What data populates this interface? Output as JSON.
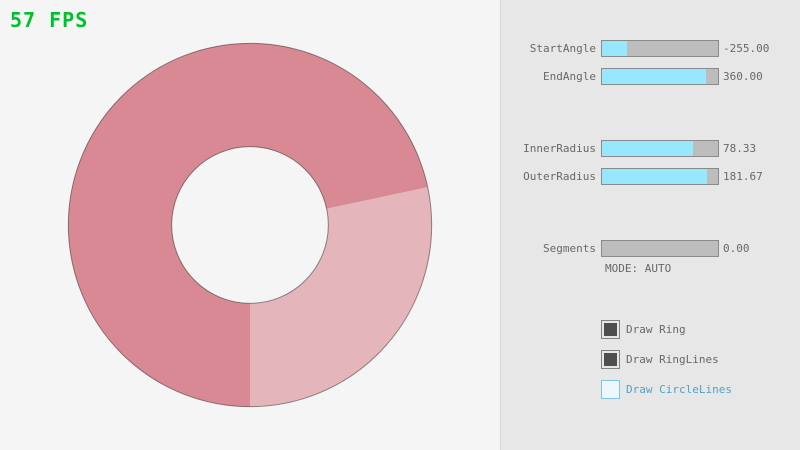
{
  "fps": {
    "text": "57 FPS",
    "color": "#00C12B"
  },
  "ring": {
    "color_dark": "#D98994",
    "color_light": "#E5B5BC",
    "outline_color": "rgba(0,0,0,0.42)"
  },
  "panel": {
    "sliders": [
      {
        "label": "StartAngle",
        "value": "-255.00",
        "fill_pct": 21.7
      },
      {
        "label": "EndAngle",
        "value": "360.00",
        "fill_pct": 90.0
      },
      {
        "label": "InnerRadius",
        "value": "78.33",
        "fill_pct": 78.3
      },
      {
        "label": "OuterRadius",
        "value": "181.67",
        "fill_pct": 90.8
      },
      {
        "label": "Segments",
        "value": "0.00",
        "fill_pct": 0
      }
    ],
    "mode_text": "MODE: AUTO",
    "checkboxes": [
      {
        "label": "Draw Ring",
        "checked": true
      },
      {
        "label": "Draw RingLines",
        "checked": true
      },
      {
        "label": "Draw CircleLines",
        "checked": false
      }
    ],
    "accent": {
      "slider_fill": "#97E8FF",
      "focus_text": "#4FA3C9"
    }
  }
}
